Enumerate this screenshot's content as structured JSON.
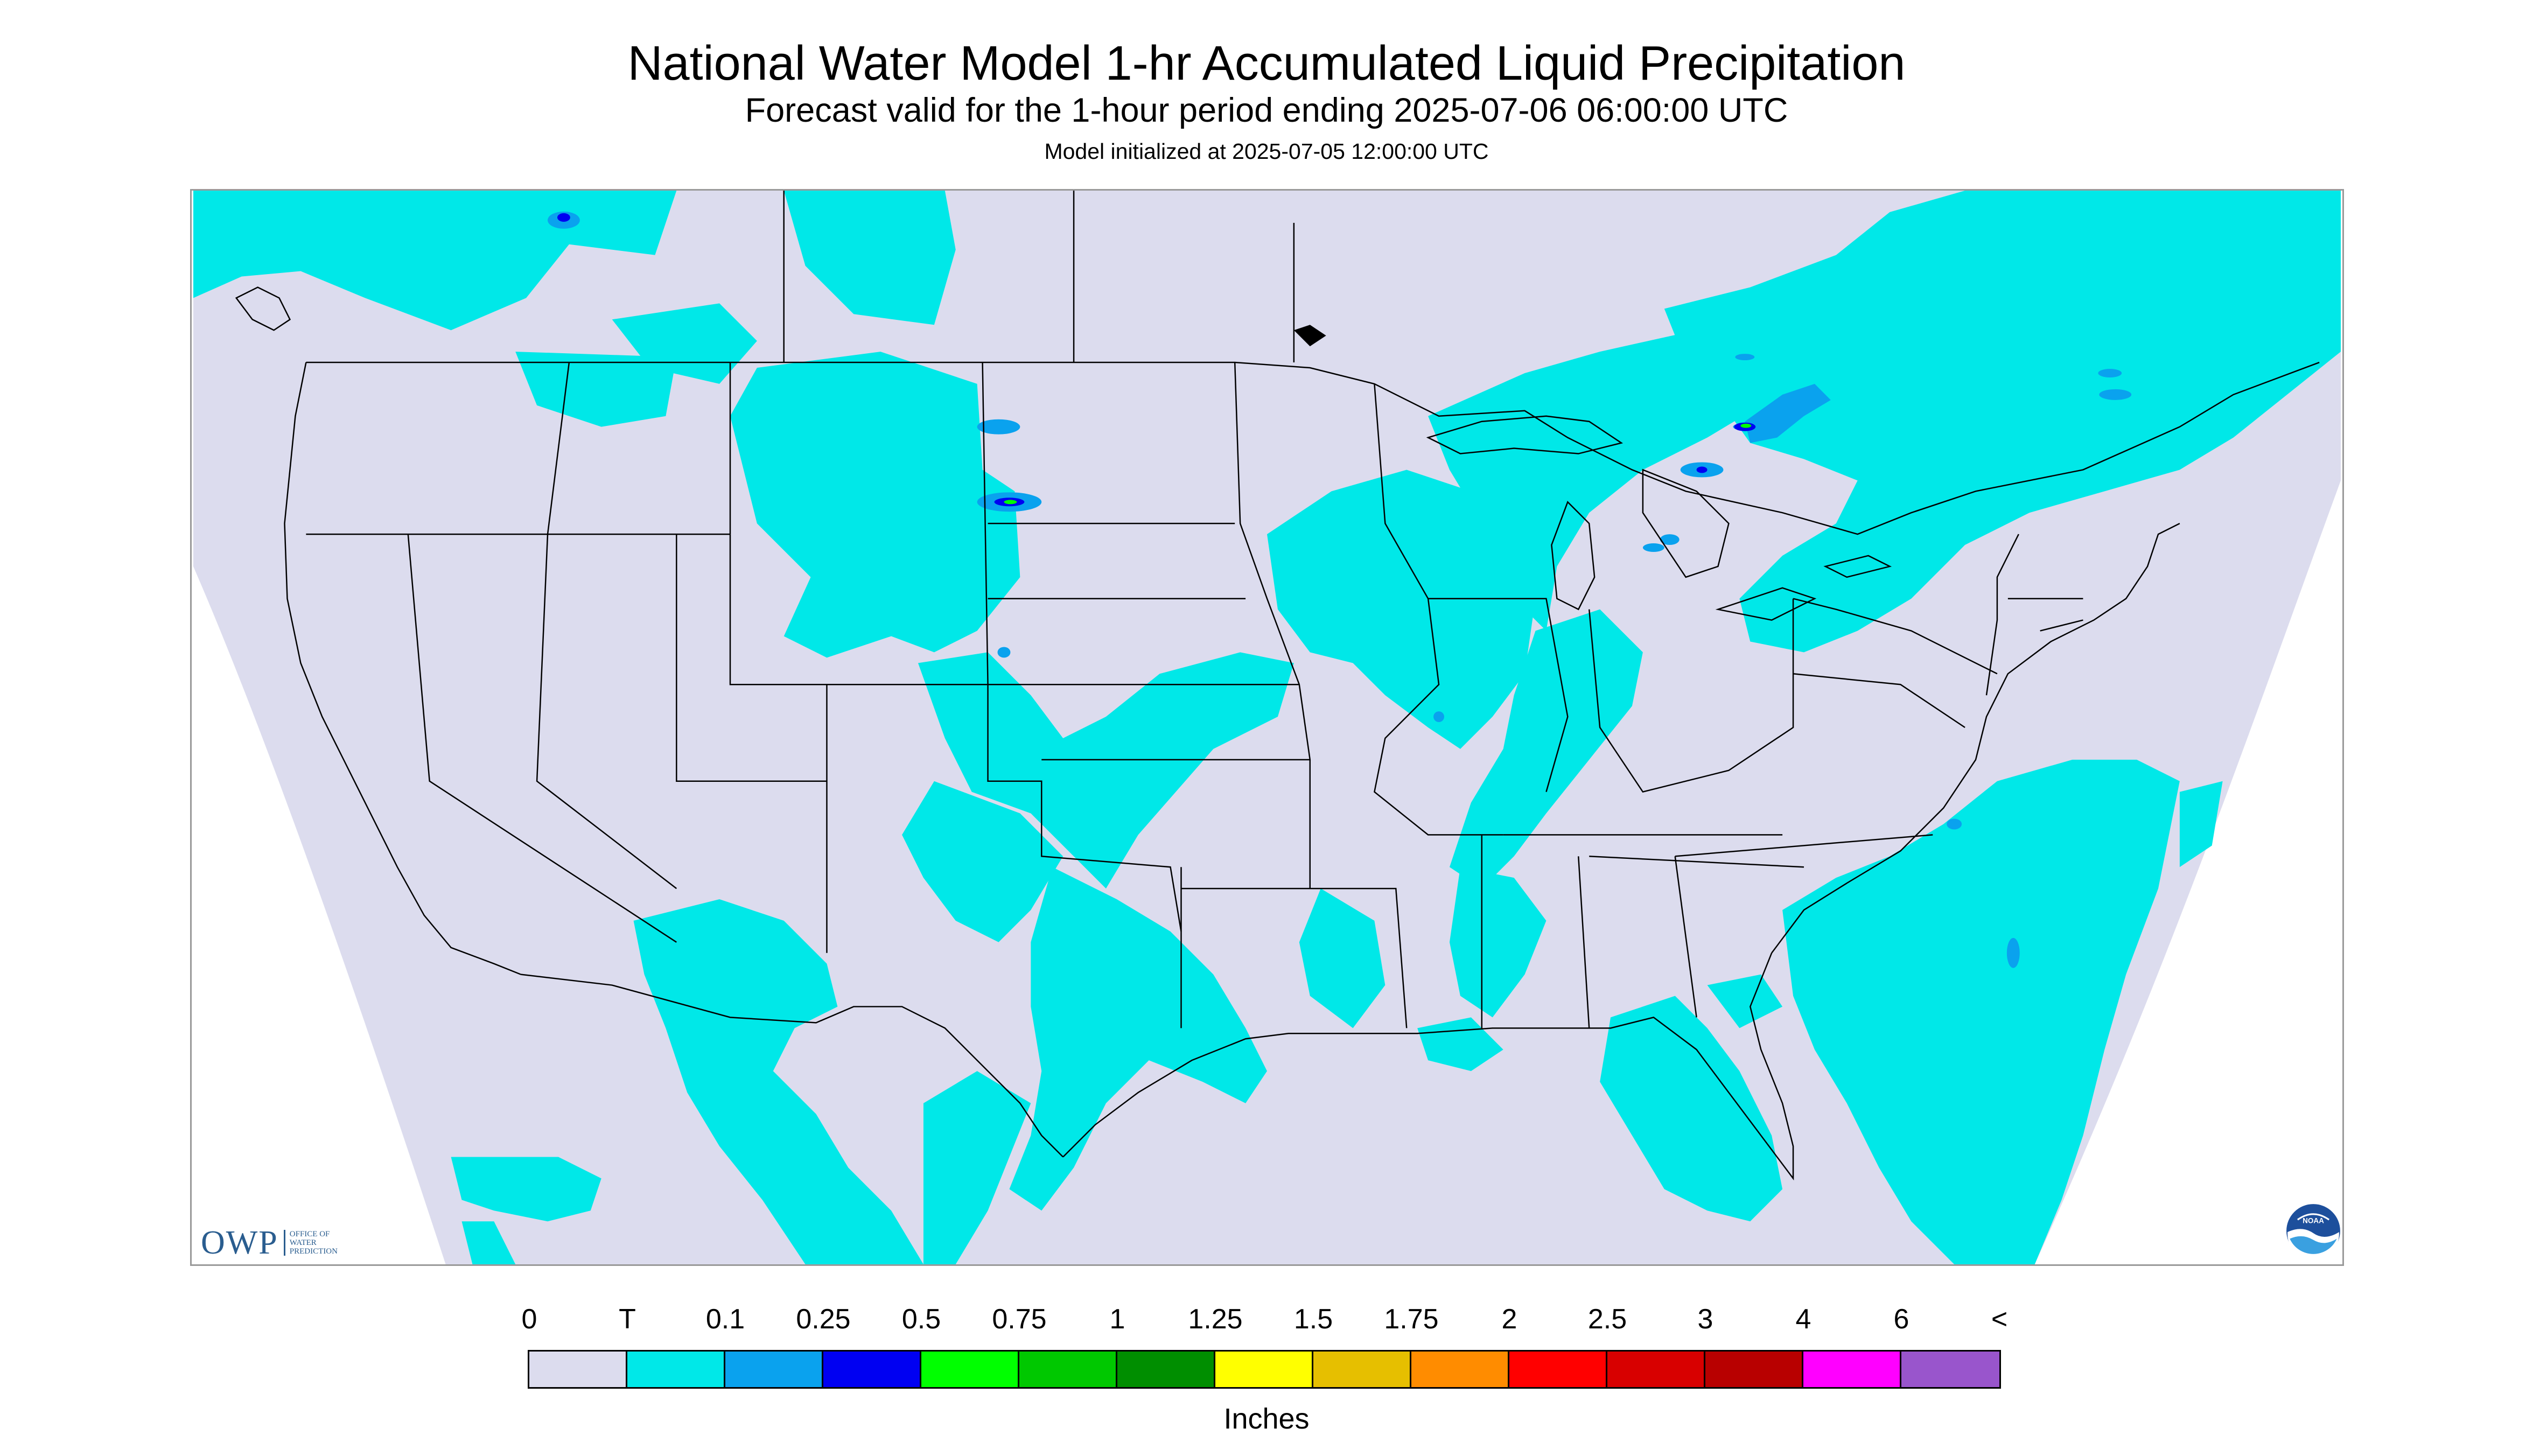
{
  "header": {
    "title": "National Water Model 1-hr Accumulated Liquid Precipitation",
    "subtitle": "Forecast valid for the 1-hour period ending 2025-07-06 06:00:00 UTC",
    "init": "Model initialized at 2025-07-05 12:00:00 UTC"
  },
  "map": {
    "region": "CONUS",
    "background_color": "#dcdcee",
    "outside_domain_color": "#ffffff",
    "boundary_color": "#000000"
  },
  "legend": {
    "labels": [
      "0",
      "T",
      "0.1",
      "0.25",
      "0.5",
      "0.75",
      "1",
      "1.25",
      "1.5",
      "1.75",
      "2",
      "2.5",
      "3",
      "4",
      "6",
      "<"
    ],
    "colors": [
      "#dcdcee",
      "#00e8e8",
      "#0aa2ee",
      "#0000f2",
      "#00ff00",
      "#00c800",
      "#008e00",
      "#ffff00",
      "#e6bf00",
      "#ff8c00",
      "#ff0000",
      "#d80000",
      "#b80000",
      "#ff00ff",
      "#9955cc"
    ],
    "units": "Inches"
  },
  "logos": {
    "owp": {
      "name": "OWP",
      "subtext": "OFFICE OF\nWATER\nPREDICTION",
      "icon": "owp-logo"
    },
    "noaa": {
      "name": "NOAA",
      "icon": "noaa-logo"
    }
  }
}
